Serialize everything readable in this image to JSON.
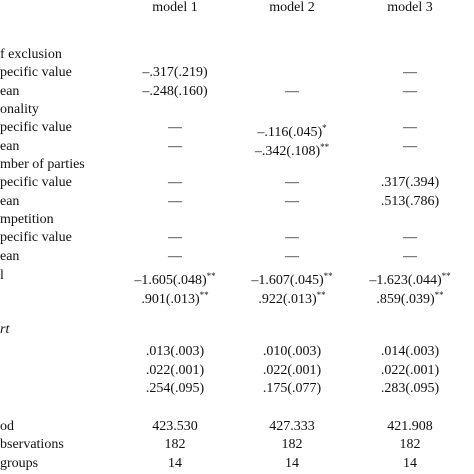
{
  "table": {
    "columns": [
      "model 1",
      "model 2",
      "model 3"
    ],
    "rows": [
      {
        "label": "f exclusion"
      },
      {
        "label": "pecific value",
        "cells": [
          "–.317(.219)",
          null,
          "—"
        ],
        "sig": [
          null,
          null,
          null
        ]
      },
      {
        "label": "ean",
        "cells": [
          "–.248(.160)",
          "—",
          "—"
        ],
        "sig": [
          null,
          null,
          null
        ]
      },
      {
        "label": "onality"
      },
      {
        "label": "pecific value",
        "cells": [
          "—",
          "–.116(.045)",
          "—"
        ],
        "sig": [
          null,
          "*",
          null
        ]
      },
      {
        "label": "ean",
        "cells": [
          "—",
          "–.342(.108)",
          "—"
        ],
        "sig": [
          null,
          "**",
          null
        ]
      },
      {
        "label": "mber of parties"
      },
      {
        "label": "pecific value",
        "cells": [
          "—",
          "—",
          ".317(.394)"
        ],
        "sig": [
          null,
          null,
          null
        ]
      },
      {
        "label": "ean",
        "cells": [
          "—",
          "—",
          ".513(.786)"
        ],
        "sig": [
          null,
          null,
          null
        ]
      },
      {
        "label": "mpetition"
      },
      {
        "label": "pecific value",
        "cells": [
          "—",
          "—",
          "—"
        ],
        "sig": [
          null,
          null,
          null
        ]
      },
      {
        "label": "ean",
        "cells": [
          "—",
          "—",
          "—"
        ],
        "sig": [
          null,
          null,
          null
        ]
      },
      {
        "label": "l",
        "cells": [
          "–1.605(.048)",
          "–1.607(.045)",
          "–1.623(.044)"
        ],
        "sig": [
          "**",
          "**",
          "**"
        ]
      },
      {
        "label": null,
        "cells": [
          ".901(.013)",
          ".922(.013)",
          ".859(.039)"
        ],
        "sig": [
          "**",
          "**",
          "**"
        ]
      },
      {
        "label": "rt",
        "italic": true
      },
      {
        "label": null,
        "cells": [
          ".013(.003)",
          ".010(.003)",
          ".014(.003)"
        ],
        "sig": [
          null,
          null,
          null
        ]
      },
      {
        "label": null,
        "cells": [
          ".022(.001)",
          ".022(.001)",
          ".022(.001)"
        ],
        "sig": [
          null,
          null,
          null
        ]
      },
      {
        "label": null,
        "cells": [
          ".254(.095)",
          ".175(.077)",
          ".283(.095)"
        ],
        "sig": [
          null,
          null,
          null
        ]
      },
      {
        "label": "od",
        "cells": [
          "423.530",
          "427.333",
          "421.908"
        ],
        "sig": [
          null,
          null,
          null
        ]
      },
      {
        "label": "bservations",
        "cells": [
          "182",
          "182",
          "182"
        ],
        "sig": [
          null,
          null,
          null
        ]
      },
      {
        "label": "groups",
        "cells": [
          "14",
          "14",
          "14"
        ],
        "sig": [
          null,
          null,
          null
        ]
      }
    ]
  }
}
